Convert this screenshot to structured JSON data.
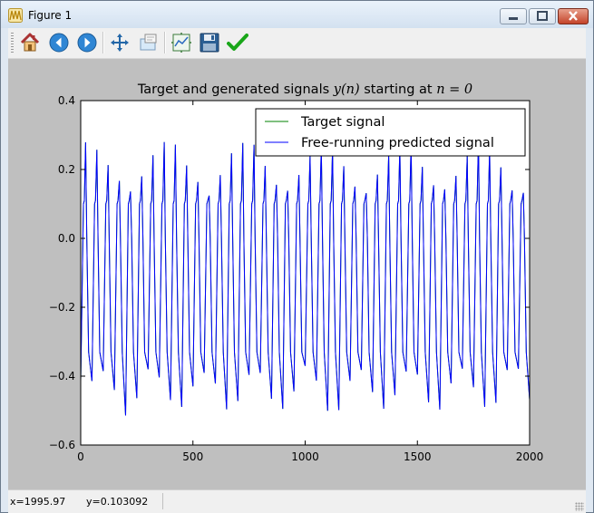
{
  "window": {
    "title": "Figure 1",
    "controls": {
      "minimize": "–",
      "maximize": "□",
      "close": "✕"
    }
  },
  "toolbar": {
    "buttons": [
      {
        "name": "home",
        "icon": "home-icon"
      },
      {
        "name": "back",
        "icon": "back-arrow-icon"
      },
      {
        "name": "forward",
        "icon": "forward-arrow-icon"
      },
      {
        "name": "pan",
        "icon": "pan-move-icon"
      },
      {
        "name": "zoom",
        "icon": "zoom-rect-icon"
      },
      {
        "name": "subplots",
        "icon": "subplots-configure-icon"
      },
      {
        "name": "save",
        "icon": "save-floppy-icon"
      },
      {
        "name": "edit",
        "icon": "edit-checkmark-icon"
      }
    ]
  },
  "status": {
    "x": "x=1995.97",
    "y": "y=0.103092"
  },
  "colors": {
    "figure_bg": "#bfbfbf",
    "axes_bg": "#ffffff",
    "target_line": "#008000",
    "predicted_line": "#0000ff"
  },
  "chart_data": {
    "type": "line",
    "title": "Target and generated signals y(n) starting at n = 0",
    "title_prefix": "Target and generated signals ",
    "title_math_1": "y(n)",
    "title_middle": " starting at ",
    "title_math_2": "n = 0",
    "xlabel": "",
    "ylabel": "",
    "xlim": [
      0,
      2000
    ],
    "ylim": [
      -0.6,
      0.4
    ],
    "xticks": [
      0,
      500,
      1000,
      1500,
      2000
    ],
    "xtick_labels": [
      "0",
      "500",
      "1000",
      "1500",
      "2000"
    ],
    "yticks": [
      -0.6,
      -0.4,
      -0.2,
      0.0,
      0.2,
      0.4
    ],
    "ytick_labels": [
      "−0.6",
      "−0.4",
      "−0.2",
      "0.0",
      "0.2",
      "0.4"
    ],
    "grid": false,
    "legend": {
      "placement": "upper right"
    },
    "series": [
      {
        "name": "Target signal",
        "color": "#008000",
        "approx_period": 50,
        "cycle_shape": [
          [
            0,
            -0.42
          ],
          [
            12,
            0.1
          ],
          [
            16,
            0.11
          ],
          [
            22,
            0.28
          ],
          [
            27,
            0.0
          ],
          [
            35,
            -0.33
          ],
          [
            50,
            -0.42
          ]
        ],
        "peak_range": [
          0.12,
          0.3
        ],
        "trough_range": [
          -0.52,
          -0.36
        ]
      },
      {
        "name": "Free-running predicted signal",
        "color": "#0000ff",
        "approx_period": 50,
        "cycle_shape": [
          [
            0,
            -0.42
          ],
          [
            12,
            0.1
          ],
          [
            16,
            0.11
          ],
          [
            22,
            0.28
          ],
          [
            27,
            0.0
          ],
          [
            35,
            -0.33
          ],
          [
            50,
            -0.42
          ]
        ],
        "peak_range": [
          0.12,
          0.3
        ],
        "trough_range": [
          -0.52,
          -0.36
        ]
      }
    ]
  }
}
